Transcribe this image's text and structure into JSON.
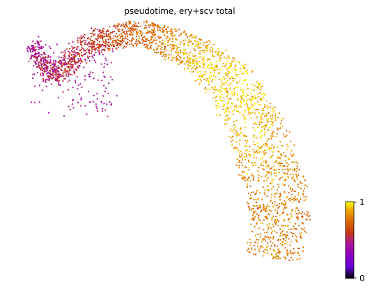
{
  "chart_data": {
    "type": "scatter",
    "title": "pseudotime, ery+scv total",
    "xlabel": "",
    "ylabel": "",
    "axes_visible": false,
    "grid": false,
    "colormap": "gnuplot",
    "color_value_range": [
      0,
      1
    ],
    "colorbar": {
      "placement": "right-bottom",
      "ticks": [
        {
          "value": 0,
          "label": "0"
        },
        {
          "value": 1,
          "label": "1"
        }
      ]
    },
    "x_range": [
      0,
      1
    ],
    "y_range": [
      0,
      1
    ],
    "point_count_approx": 6000,
    "series": [
      {
        "role": "embedding-trajectory",
        "description": "points colored by pseudotime along an arc",
        "samples": [
          {
            "x": 0.03,
            "y": 0.95,
            "value": 0.45
          },
          {
            "x": 0.1,
            "y": 0.8,
            "value": 0.55
          },
          {
            "x": 0.22,
            "y": 0.96,
            "value": 0.6
          },
          {
            "x": 0.38,
            "y": 1.0,
            "value": 0.75
          },
          {
            "x": 0.55,
            "y": 0.91,
            "value": 0.9
          },
          {
            "x": 0.68,
            "y": 0.75,
            "value": 0.97
          },
          {
            "x": 0.77,
            "y": 0.5,
            "value": 0.88
          },
          {
            "x": 0.82,
            "y": 0.25,
            "value": 0.8
          },
          {
            "x": 0.8,
            "y": 0.03,
            "value": 0.82
          }
        ]
      }
    ]
  }
}
